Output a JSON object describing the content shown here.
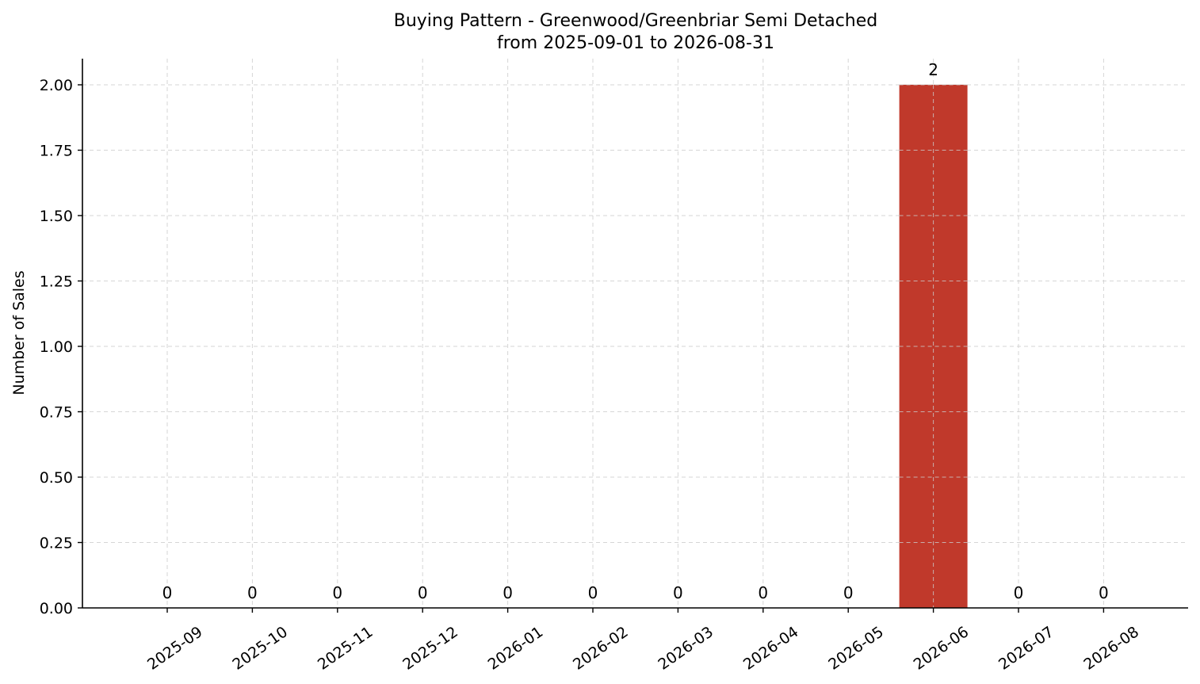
{
  "chart_data": {
    "type": "bar",
    "title": "Buying Pattern - Greenwood/Greenbriar Semi Detached",
    "subtitle": "from 2025-09-01 to 2026-08-31",
    "xlabel": "",
    "ylabel": "Number of Sales",
    "categories": [
      "2025-09",
      "2025-10",
      "2025-11",
      "2025-12",
      "2026-01",
      "2026-02",
      "2026-03",
      "2026-04",
      "2026-05",
      "2026-06",
      "2026-07",
      "2026-08"
    ],
    "values": [
      0,
      0,
      0,
      0,
      0,
      0,
      0,
      0,
      0,
      2,
      0,
      0
    ],
    "data_labels": [
      "0",
      "0",
      "0",
      "0",
      "0",
      "0",
      "0",
      "0",
      "0",
      "2",
      "0",
      "0"
    ],
    "ylim": [
      0,
      2.1
    ],
    "yticks": [
      0,
      0.25,
      0.5,
      0.75,
      1.0,
      1.25,
      1.5,
      1.75,
      2.0
    ],
    "ytick_labels": [
      "0.00",
      "0.25",
      "0.50",
      "0.75",
      "1.00",
      "1.25",
      "1.50",
      "1.75",
      "2.00"
    ],
    "grid": true,
    "bar_color": "#c0392b"
  }
}
